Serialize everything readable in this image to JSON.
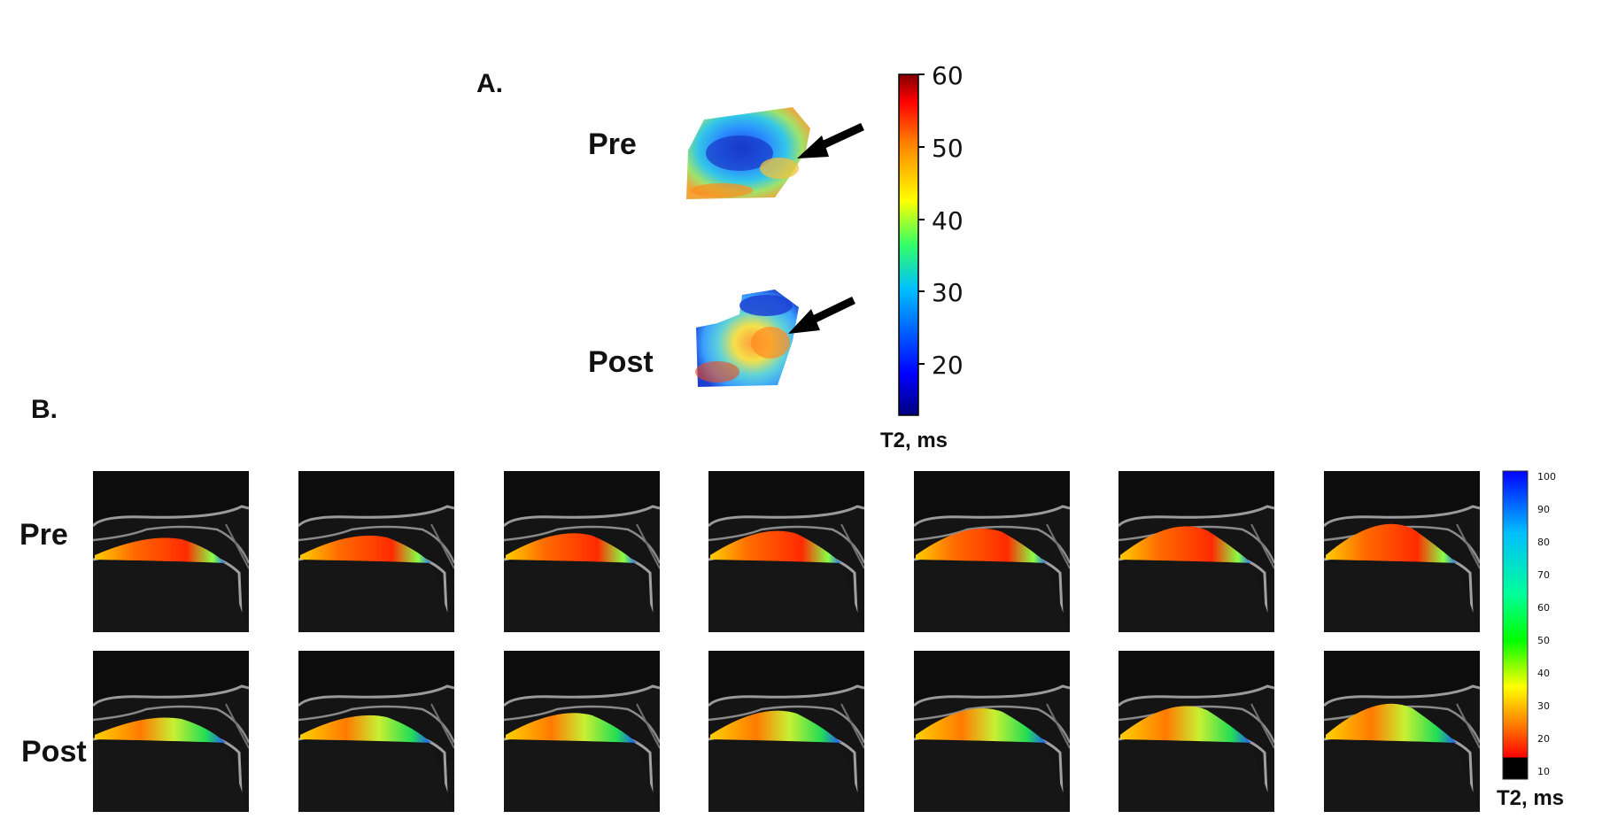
{
  "panel_a": {
    "label": "A.",
    "rows": [
      "Pre",
      "Post"
    ],
    "colorbar": {
      "ticks": [
        "60",
        "50",
        "40",
        "30",
        "20"
      ],
      "title": "T2, ms",
      "colors": [
        "#00007f",
        "#0000ff",
        "#00bfff",
        "#33ff66",
        "#ffff00",
        "#ff7f00",
        "#ff0000",
        "#7f0000"
      ]
    }
  },
  "panel_b": {
    "label": "B.",
    "rows": [
      "Pre",
      "Post"
    ],
    "slices_per_row": 7,
    "colorbar": {
      "ticks": [
        "100",
        "90",
        "80",
        "70",
        "60",
        "50",
        "40",
        "30",
        "20",
        "10"
      ],
      "title": "T2, ms",
      "colors": [
        "#0000ff",
        "#00bfff",
        "#00ff99",
        "#00ff00",
        "#ffff00",
        "#ff8000",
        "#ff0000",
        "#000000"
      ]
    }
  }
}
